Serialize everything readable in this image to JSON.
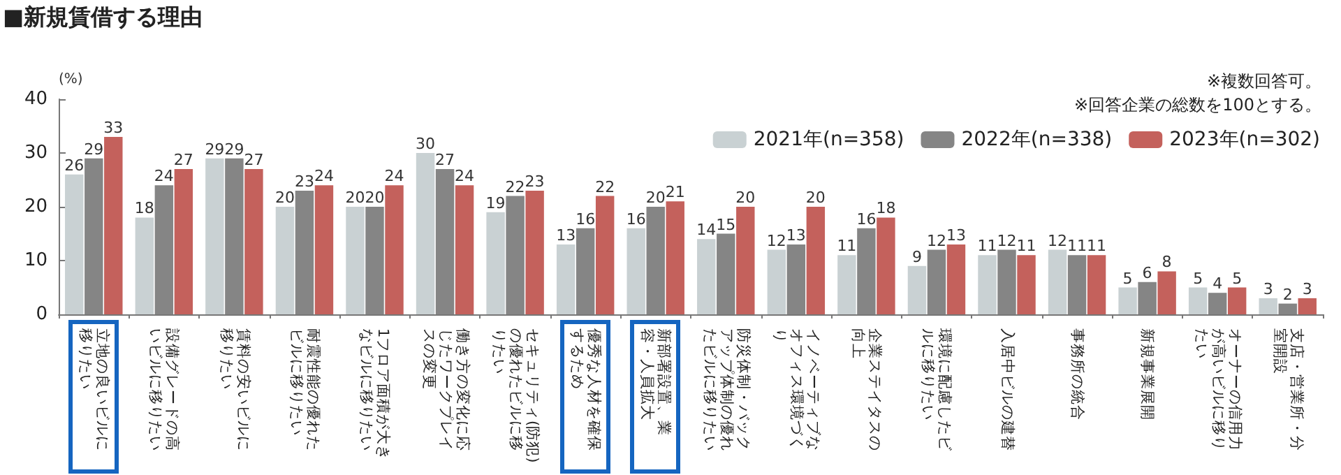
{
  "chart_data": {
    "type": "bar",
    "title": "■新規賃借する理由",
    "ylabel": "(%)",
    "annotations": [
      "※複数回答可。",
      "※回答企業の総数を100とする。"
    ],
    "categories": [
      "立地の良いビルに移りたい",
      "設備グレードの高いビルに移りたい",
      "賃料の安いビルに移りたい",
      "耐震性能の優れたビルに移りたい",
      "1フロア面積が大きなビルに移りたい",
      "働き方の変化に応じたワークプレイスの変更",
      "セキュリティ(防犯)の優れたビルに移りたい",
      "優秀な人材を確保するため",
      "新部署設置、業容・人員拡大",
      "防災体制・バックアップ体制の優れたビルに移りたい",
      "イノベーティブなオフィス環境づくり",
      "企業ステイタスの向上",
      "環境に配慮したビルに移りたい",
      "入居中ビルの建替",
      "事務所の統合",
      "新規事業展開",
      "オーナーの信用力が高いビルに移りたい",
      "支店・営業所・分室開設"
    ],
    "series": [
      {
        "name": "2021年(n=358)",
        "color": "#c9d1d3",
        "values": [
          26,
          18,
          29,
          20,
          20,
          30,
          19,
          13,
          16,
          14,
          12,
          11,
          9,
          11,
          12,
          5,
          5,
          3
        ]
      },
      {
        "name": "2022年(n=338)",
        "color": "#858585",
        "values": [
          29,
          24,
          29,
          23,
          20,
          27,
          22,
          16,
          20,
          15,
          13,
          16,
          12,
          12,
          11,
          6,
          4,
          2
        ]
      },
      {
        "name": "2023年(n=302)",
        "color": "#c4615c",
        "values": [
          33,
          27,
          27,
          24,
          24,
          24,
          23,
          22,
          21,
          20,
          20,
          18,
          13,
          11,
          11,
          8,
          5,
          3
        ]
      }
    ],
    "ylim": [
      0,
      40
    ],
    "yticks": [
      0,
      10,
      20,
      30,
      40
    ],
    "grid": false,
    "legend": "top right",
    "data_labels": true
  }
}
